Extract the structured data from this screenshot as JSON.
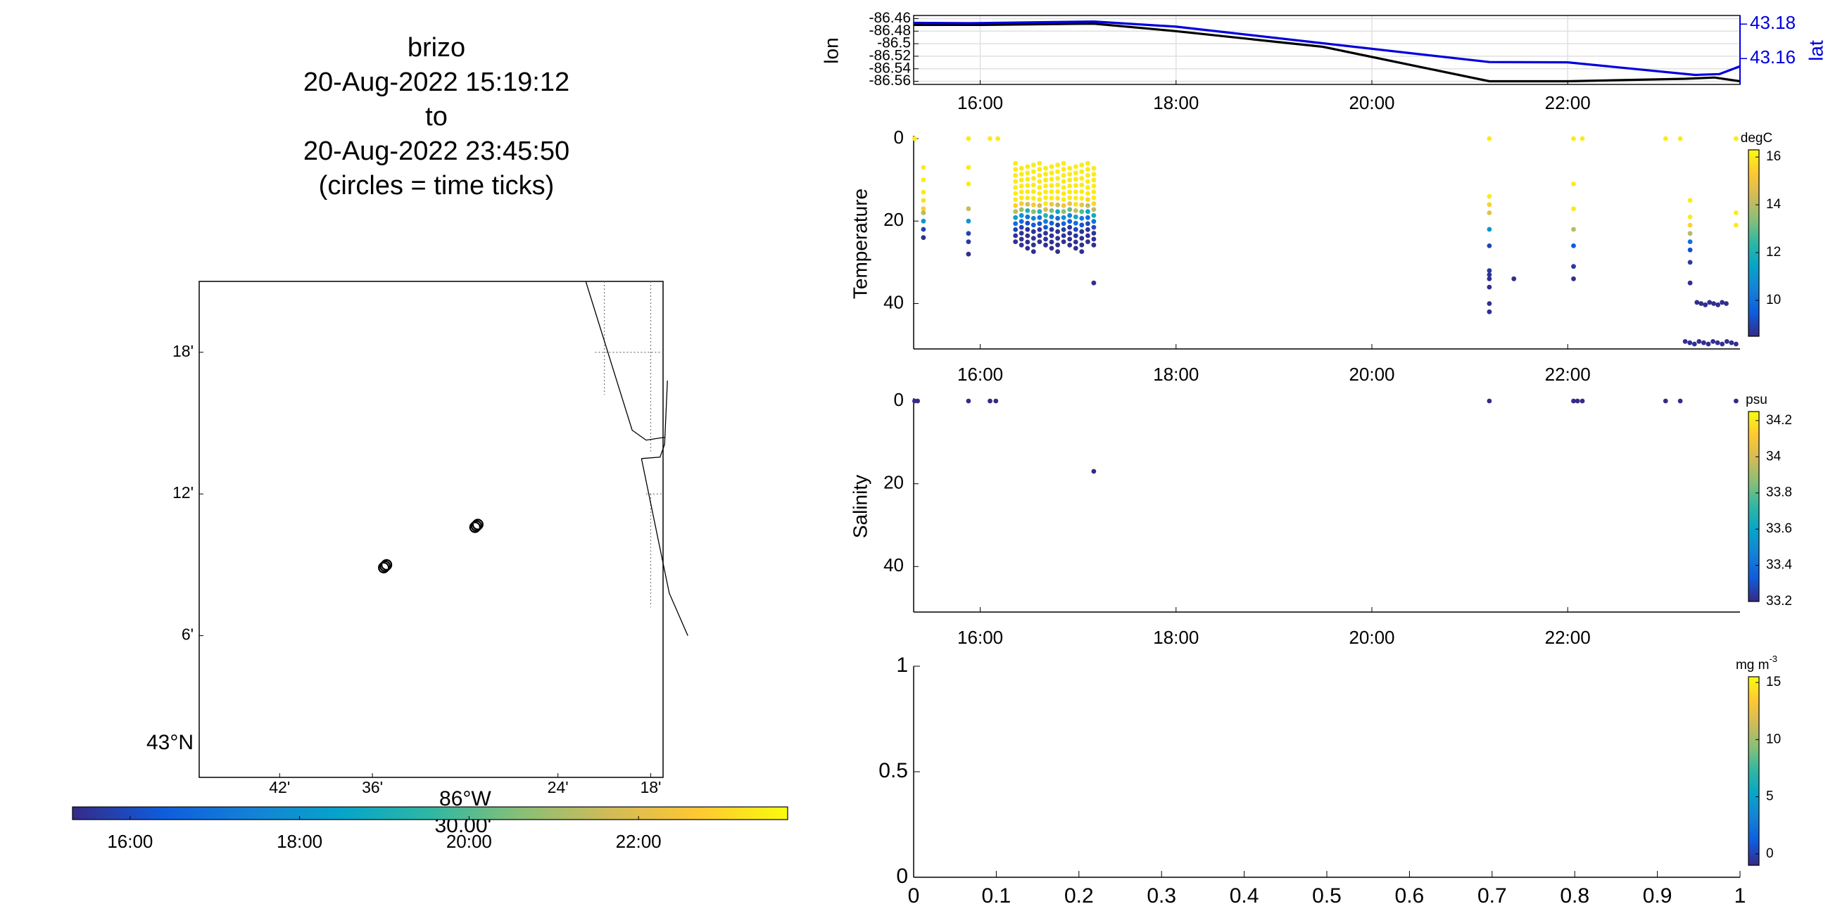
{
  "title_lines": [
    "brizo",
    "20-Aug-2022 15:19:12",
    "to",
    "20-Aug-2022 23:45:50",
    "(circles = time ticks)"
  ],
  "colors": {
    "lon_line": "#000000",
    "lat_line": "#0000dd",
    "colormap": [
      "#352a87",
      "#0f5cdd",
      "#1481d6",
      "#06a4ca",
      "#2eb7a4",
      "#87bf77",
      "#d1bb59",
      "#fec832",
      "#f9fb0e"
    ]
  },
  "chart_data": [
    {
      "type": "map",
      "name": "track-map",
      "lat_ticks": [
        "6'",
        "12'",
        "18'"
      ],
      "lat_tick_values": [
        43.1,
        43.2,
        43.3
      ],
      "lat_extra_label": "43°N",
      "lon_ticks": [
        "42'",
        "36'",
        "24'",
        "18'"
      ],
      "lon_tick_values": [
        -86.7,
        -86.6,
        -86.4,
        -86.3
      ],
      "lon_extra_label": "86°W",
      "lon_extra_sublabel": "30.00'",
      "xlim": [
        -86.7867,
        -86.2867
      ],
      "ylim": [
        43.0,
        43.35
      ],
      "grid": "dotted",
      "time_markers": [
        {
          "lon": -86.5863,
          "lat": 43.149
        },
        {
          "lon": -86.4879,
          "lat": 43.1775
        }
      ],
      "coastline_segments": [
        [
          [
            -86.37,
            43.35
          ],
          [
            -86.32,
            43.245
          ],
          [
            -86.305,
            43.238
          ],
          [
            -86.285,
            43.24
          ]
        ],
        [
          [
            -86.31,
            43.225
          ],
          [
            -86.29,
            43.226
          ],
          [
            -86.285,
            43.235
          ],
          [
            -86.282,
            43.28
          ]
        ],
        [
          [
            -86.31,
            43.225
          ],
          [
            -86.28,
            43.13
          ],
          [
            -86.26,
            43.1
          ]
        ]
      ]
    },
    {
      "type": "colorbar",
      "name": "time-colorbar",
      "ticks": [
        "16:00",
        "18:00",
        "20:00",
        "22:00"
      ],
      "tick_values": [
        16,
        18,
        20,
        22
      ],
      "range": [
        15.32,
        23.76
      ]
    },
    {
      "type": "line",
      "name": "lon-lat",
      "ylabel": "lon",
      "y2label": "lat",
      "xlim": [
        15.32,
        23.76
      ],
      "ylim": [
        -86.565,
        -86.455
      ],
      "y2lim": [
        43.145,
        43.185
      ],
      "yticks": [
        "-86.46",
        "-86.48",
        "-86.5",
        "-86.52",
        "-86.54",
        "-86.56"
      ],
      "ytick_values": [
        -86.46,
        -86.48,
        -86.5,
        -86.52,
        -86.54,
        -86.56
      ],
      "y2ticks": [
        "43.16",
        "43.18"
      ],
      "y2tick_values": [
        43.16,
        43.18
      ],
      "xticks": [
        "16:00",
        "18:00",
        "20:00",
        "22:00"
      ],
      "xtick_values": [
        16,
        18,
        20,
        22
      ],
      "grid": true,
      "series": [
        {
          "name": "lon",
          "axis": "left",
          "x": [
            15.32,
            16.0,
            17.16,
            18.0,
            19.5,
            21.2,
            22.0,
            23.2,
            23.5,
            23.76
          ],
          "y": [
            -86.47,
            -86.47,
            -86.468,
            -86.48,
            -86.505,
            -86.56,
            -86.56,
            -86.556,
            -86.554,
            -86.56
          ]
        },
        {
          "name": "lat",
          "axis": "right",
          "x": [
            15.32,
            15.9,
            17.16,
            18.0,
            21.2,
            22.0,
            23.3,
            23.55,
            23.76
          ],
          "y": [
            43.1807,
            43.1805,
            43.1815,
            43.1785,
            43.158,
            43.1578,
            43.1505,
            43.151,
            43.1555
          ]
        }
      ]
    },
    {
      "type": "scatter",
      "name": "temperature-profile",
      "ylabel": "Temperature",
      "cbar_label": "degC",
      "cbar_ticks": [
        "10",
        "12",
        "14",
        "16"
      ],
      "cbar_tick_values": [
        10,
        12,
        14,
        16
      ],
      "crange": [
        8.5,
        16.3
      ],
      "xlim": [
        15.32,
        23.76
      ],
      "ylim": [
        0,
        51
      ],
      "yticks": [
        "0",
        "20",
        "40"
      ],
      "ytick_values": [
        0,
        20,
        40
      ],
      "xticks": [
        "16:00",
        "18:00",
        "20:00",
        "22:00"
      ],
      "xtick_values": [
        16,
        18,
        20,
        22
      ],
      "casts": [
        {
          "x": 15.33,
          "depths": [
            0
          ],
          "values": [
            16
          ]
        },
        {
          "x": 15.42,
          "depths": [
            7,
            10,
            13,
            15,
            17,
            18,
            20,
            22,
            24
          ],
          "values": [
            16,
            16,
            16,
            15.8,
            15.4,
            14,
            11,
            9,
            8.6
          ]
        },
        {
          "x": 15.88,
          "depths": [
            0,
            7,
            11,
            17,
            20,
            23,
            25,
            28
          ],
          "values": [
            16,
            16,
            16,
            14.2,
            11,
            9,
            8.8,
            8.6
          ]
        },
        {
          "x": 16.1,
          "depths": [
            0
          ],
          "values": [
            16
          ]
        },
        {
          "x": 16.18,
          "depths": [
            0
          ],
          "values": [
            16
          ]
        },
        {
          "x": 17.16,
          "depths": [
            35
          ],
          "values": [
            8.6
          ]
        },
        {
          "x": 21.2,
          "depths": [
            0,
            14,
            16,
            18,
            22,
            26,
            32,
            33,
            34,
            36,
            40,
            42
          ],
          "values": [
            16,
            16,
            15.5,
            14.8,
            11,
            9,
            8.8,
            8.7,
            8.6,
            8.6,
            8.6,
            8.6
          ]
        },
        {
          "x": 21.45,
          "depths": [
            34
          ],
          "values": [
            8.6
          ]
        },
        {
          "x": 22.06,
          "depths": [
            0,
            11,
            17,
            22,
            26,
            31,
            34
          ],
          "values": [
            16,
            16,
            16,
            14,
            9.5,
            8.8,
            8.6
          ]
        },
        {
          "x": 22.15,
          "depths": [
            0
          ],
          "values": [
            16
          ]
        },
        {
          "x": 23.0,
          "depths": [
            0
          ],
          "values": [
            16
          ]
        },
        {
          "x": 23.15,
          "depths": [
            0
          ],
          "values": [
            16
          ]
        },
        {
          "x": 23.25,
          "depths": [
            15,
            19,
            21,
            23,
            25,
            27,
            30,
            35
          ],
          "values": [
            16,
            16,
            15.5,
            14,
            10,
            9.2,
            8.8,
            8.6
          ]
        },
        {
          "x": 23.72,
          "depths": [
            0,
            18,
            21
          ],
          "values": [
            16,
            16,
            16
          ]
        }
      ],
      "dense_block": {
        "x_start": 16.36,
        "x_end": 17.16,
        "columns": 14,
        "depth_start": 6,
        "depth_end": 26,
        "rows": 14,
        "profile_depths": [
          6,
          15,
          17,
          19,
          22,
          26
        ],
        "profile_values": [
          16,
          16,
          14,
          10.5,
          8.7,
          8.6
        ]
      },
      "deep_row": {
        "x_start": 23.32,
        "x_end": 23.62,
        "count": 8,
        "depth": 40
      },
      "deeper_row": {
        "x_start": 23.2,
        "x_end": 23.72,
        "count": 12,
        "depth": 49.5
      }
    },
    {
      "type": "scatter",
      "name": "salinity-profile",
      "ylabel": "Salinity",
      "cbar_label": "psu",
      "cbar_ticks": [
        "33.2",
        "33.4",
        "33.6",
        "33.8",
        "34",
        "34.2"
      ],
      "cbar_tick_values": [
        33.2,
        33.4,
        33.6,
        33.8,
        34.0,
        34.2
      ],
      "crange": [
        33.2,
        34.25
      ],
      "xlim": [
        15.32,
        23.76
      ],
      "ylim": [
        0,
        51
      ],
      "yticks": [
        "0",
        "20",
        "40"
      ],
      "ytick_values": [
        0,
        20,
        40
      ],
      "xticks": [
        "16:00",
        "18:00",
        "20:00",
        "22:00"
      ],
      "xtick_values": [
        16,
        18,
        20,
        22
      ],
      "points": [
        {
          "x": 15.33,
          "y": 0,
          "v": 33.2
        },
        {
          "x": 15.36,
          "y": 0,
          "v": 33.2
        },
        {
          "x": 15.88,
          "y": 0,
          "v": 33.2
        },
        {
          "x": 16.1,
          "y": 0,
          "v": 33.2
        },
        {
          "x": 16.16,
          "y": 0,
          "v": 33.2
        },
        {
          "x": 17.16,
          "y": 17,
          "v": 33.2
        },
        {
          "x": 21.2,
          "y": 0,
          "v": 33.2
        },
        {
          "x": 22.06,
          "y": 0,
          "v": 33.2
        },
        {
          "x": 22.1,
          "y": 0,
          "v": 33.2
        },
        {
          "x": 22.15,
          "y": 0,
          "v": 33.2
        },
        {
          "x": 23.0,
          "y": 0,
          "v": 33.2
        },
        {
          "x": 23.15,
          "y": 0,
          "v": 33.2
        },
        {
          "x": 23.72,
          "y": 0,
          "v": 33.2
        }
      ]
    },
    {
      "type": "scatter",
      "name": "empty-panel",
      "xlim": [
        0,
        1
      ],
      "ylim": [
        0,
        1
      ],
      "xticks": [
        "0",
        "0.1",
        "0.2",
        "0.3",
        "0.4",
        "0.5",
        "0.6",
        "0.7",
        "0.8",
        "0.9",
        "1"
      ],
      "xtick_values": [
        0,
        0.1,
        0.2,
        0.3,
        0.4,
        0.5,
        0.6,
        0.7,
        0.8,
        0.9,
        1
      ],
      "yticks": [
        "0",
        "0.5",
        "1"
      ],
      "ytick_values": [
        0,
        0.5,
        1
      ],
      "cbar_label": "mg m",
      "cbar_label_sup": "-3",
      "cbar_ticks": [
        "0",
        "5",
        "10",
        "15"
      ],
      "cbar_tick_values": [
        0,
        5,
        10,
        15
      ],
      "crange": [
        -1,
        15.5
      ],
      "points": []
    }
  ]
}
